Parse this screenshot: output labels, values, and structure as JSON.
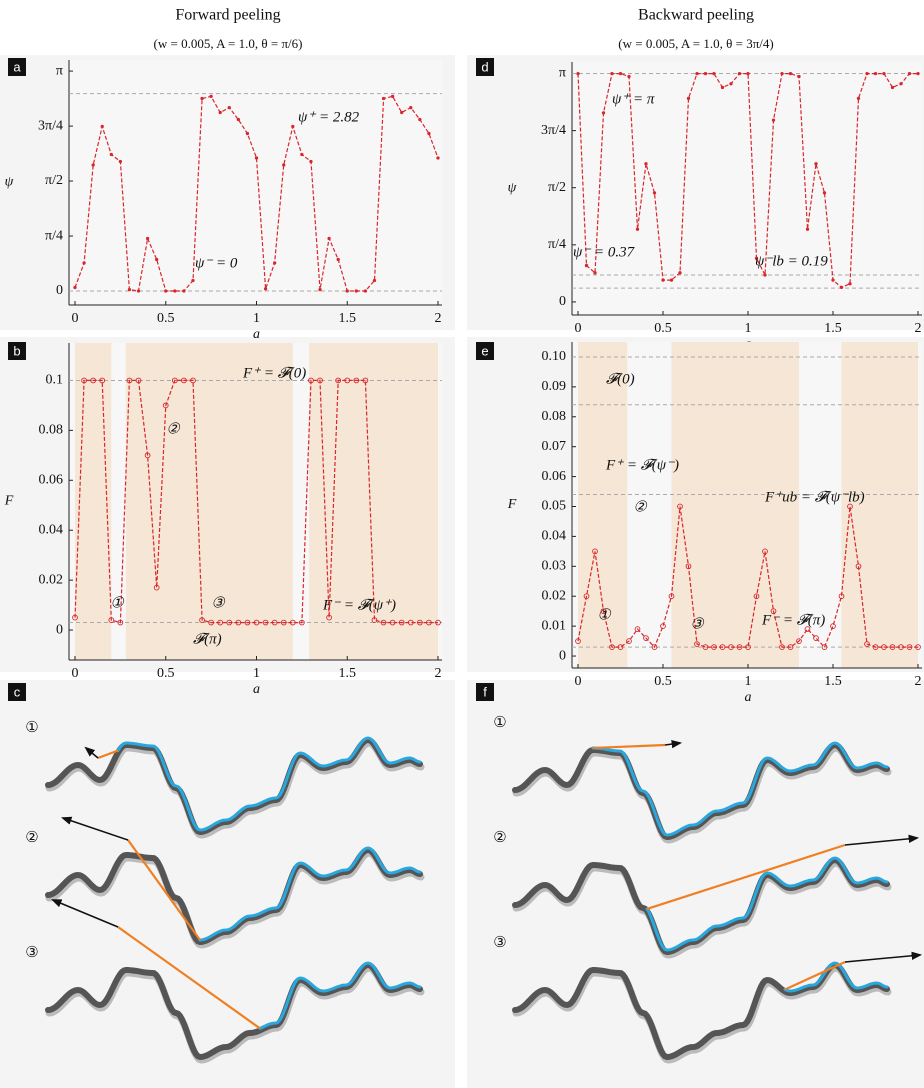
{
  "columns": [
    {
      "title": "Forward peeling",
      "subtitle": "(w = 0.005, A = 1.0, θ = π/6)"
    },
    {
      "title": "Backward peeling",
      "subtitle": "(w = 0.005, A = 1.0, θ = 3π/4)"
    }
  ],
  "chart_data": [
    {
      "type": "line",
      "panel": "a",
      "xlabel": "a",
      "ylabel": "ψ",
      "x": [
        0,
        0.05,
        0.1,
        0.15,
        0.2,
        0.25,
        0.3,
        0.35,
        0.4,
        0.45,
        0.5,
        0.55,
        0.6,
        0.65,
        0.7,
        0.75,
        0.8,
        0.85,
        0.9,
        0.95,
        1,
        1.05,
        1.1,
        1.15,
        1.2,
        1.25,
        1.3,
        1.35,
        1.4,
        1.45,
        1.5,
        1.55,
        1.6,
        1.65,
        1.7,
        1.75,
        1.8,
        1.85,
        1.9,
        1.95,
        2
      ],
      "series": [
        {
          "color": "#d9262c",
          "values": [
            0.05,
            0.4,
            1.8,
            2.35,
            1.95,
            1.85,
            0.02,
            0,
            0.75,
            0.45,
            0,
            0,
            0,
            0.15,
            2.75,
            2.78,
            2.55,
            2.62,
            2.45,
            2.25,
            1.9,
            0.03,
            0.4,
            1.8,
            2.35,
            1.95,
            1.85,
            0.02,
            0.75,
            0.45,
            0,
            0,
            0,
            0.15,
            2.75,
            2.78,
            2.55,
            2.62,
            2.45,
            2.25,
            1.9
          ]
        }
      ],
      "xlim": [
        0,
        2
      ],
      "ylim": [
        -0.2,
        3.3
      ],
      "xticks": [
        0,
        0.5,
        1,
        1.5,
        2
      ],
      "yticks": [
        0,
        {
          "value": 0.785,
          "label": "π/4"
        },
        {
          "value": 1.571,
          "label": "π/2"
        },
        {
          "value": 2.356,
          "label": "3π/4"
        },
        {
          "value": 3.1416,
          "label": "π"
        }
      ],
      "hlines": [
        2.82,
        0
      ],
      "annotations": [
        "ψ⁺ = 2.82",
        "ψ⁻ = 0"
      ]
    },
    {
      "type": "line",
      "panel": "b",
      "xlabel": "a",
      "ylabel": "F",
      "markers": true,
      "x": [
        0,
        0.05,
        0.1,
        0.15,
        0.2,
        0.25,
        0.3,
        0.35,
        0.4,
        0.45,
        0.5,
        0.55,
        0.6,
        0.65,
        0.7,
        0.75,
        0.8,
        0.85,
        0.9,
        0.95,
        1,
        1.05,
        1.1,
        1.15,
        1.2,
        1.25,
        1.3,
        1.35,
        1.4,
        1.45,
        1.5,
        1.55,
        1.6,
        1.65,
        1.7,
        1.75,
        1.8,
        1.85,
        1.9,
        1.95,
        2
      ],
      "series": [
        {
          "color": "#d9262c",
          "values": [
            0.005,
            0.1,
            0.1,
            0.1,
            0.004,
            0.003,
            0.1,
            0.1,
            0.07,
            0.017,
            0.09,
            0.1,
            0.1,
            0.1,
            0.004,
            0.003,
            0.003,
            0.003,
            0.003,
            0.003,
            0.003,
            0.003,
            0.003,
            0.003,
            0.003,
            0.003,
            0.1,
            0.1,
            0.005,
            0.1,
            0.1,
            0.1,
            0.1,
            0.004,
            0.003,
            0.003,
            0.003,
            0.003,
            0.003,
            0.003,
            0.003
          ]
        }
      ],
      "xlim": [
        0,
        2
      ],
      "ylim": [
        -0.012,
        0.115
      ],
      "xticks": [
        0,
        0.5,
        1,
        1.5,
        2
      ],
      "yticks": [
        0,
        0.02,
        0.04,
        0.06,
        0.08,
        0.1
      ],
      "shaded_regions": [
        [
          0,
          0.2
        ],
        [
          0.28,
          1.2
        ],
        [
          1.29,
          2
        ]
      ],
      "shade_color": "#f6e6d5",
      "hlines": [
        0.1,
        0.003
      ],
      "annotations": [
        "F⁺ = 𝓕(0)",
        "②",
        "①",
        "③",
        "F⁻ = 𝓕(ψ⁺)",
        "𝓕(π)"
      ]
    },
    {
      "type": "line",
      "panel": "d",
      "xlabel": "a",
      "ylabel": "ψ",
      "x": [
        0,
        0.05,
        0.1,
        0.15,
        0.2,
        0.25,
        0.3,
        0.35,
        0.4,
        0.45,
        0.5,
        0.55,
        0.6,
        0.65,
        0.7,
        0.75,
        0.8,
        0.85,
        0.9,
        0.95,
        1,
        1.05,
        1.1,
        1.15,
        1.2,
        1.25,
        1.3,
        1.35,
        1.4,
        1.45,
        1.5,
        1.55,
        1.6,
        1.65,
        1.7,
        1.75,
        1.8,
        1.85,
        1.9,
        1.95,
        2
      ],
      "series": [
        {
          "color": "#d9262c",
          "values": [
            3.14,
            0.5,
            0.4,
            2.6,
            3.14,
            3.14,
            3.1,
            1.0,
            1.9,
            1.5,
            0.3,
            0.3,
            0.4,
            2.8,
            3.14,
            3.14,
            3.14,
            2.95,
            3.0,
            3.14,
            3.14,
            0.6,
            0.37,
            2.5,
            3.14,
            3.14,
            3.1,
            1.0,
            1.9,
            1.5,
            0.3,
            0.2,
            0.25,
            2.8,
            3.14,
            3.14,
            3.14,
            2.95,
            3.0,
            3.14,
            3.14
          ]
        }
      ],
      "xlim": [
        0,
        2
      ],
      "ylim": [
        -0.18,
        3.3
      ],
      "xticks": [
        0,
        0.5,
        1,
        1.5,
        2
      ],
      "yticks": [
        0,
        {
          "value": 0.785,
          "label": "π/4"
        },
        {
          "value": 1.571,
          "label": "π/2"
        },
        {
          "value": 2.356,
          "label": "3π/4"
        },
        {
          "value": 3.1416,
          "label": "π"
        }
      ],
      "hlines": [
        3.1416,
        0.37,
        0.19
      ],
      "annotations": [
        "ψ⁺ = π",
        "ψ⁻ = 0.37",
        "ψ⁻lb = 0.19"
      ]
    },
    {
      "type": "line",
      "panel": "e",
      "xlabel": "a",
      "ylabel": "F",
      "markers": true,
      "x": [
        0,
        0.05,
        0.1,
        0.15,
        0.2,
        0.25,
        0.3,
        0.35,
        0.4,
        0.45,
        0.5,
        0.55,
        0.6,
        0.65,
        0.7,
        0.75,
        0.8,
        0.85,
        0.9,
        0.95,
        1,
        1.05,
        1.1,
        1.15,
        1.2,
        1.25,
        1.3,
        1.35,
        1.4,
        1.45,
        1.5,
        1.55,
        1.6,
        1.65,
        1.7,
        1.75,
        1.8,
        1.85,
        1.9,
        1.95,
        2
      ],
      "series": [
        {
          "color": "#d9262c",
          "values": [
            0.005,
            0.02,
            0.035,
            0.015,
            0.003,
            0.003,
            0.005,
            0.009,
            0.006,
            0.003,
            0.01,
            0.02,
            0.05,
            0.03,
            0.004,
            0.003,
            0.003,
            0.003,
            0.003,
            0.003,
            0.003,
            0.02,
            0.035,
            0.015,
            0.003,
            0.003,
            0.005,
            0.009,
            0.006,
            0.003,
            0.01,
            0.02,
            0.05,
            0.03,
            0.004,
            0.003,
            0.003,
            0.003,
            0.003,
            0.003,
            0.003
          ]
        }
      ],
      "xlim": [
        0,
        2
      ],
      "ylim": [
        -0.004,
        0.105
      ],
      "xticks": [
        0,
        0.5,
        1,
        1.5,
        2
      ],
      "yticks": [
        0,
        0.01,
        0.02,
        0.03,
        0.04,
        0.05,
        0.06,
        0.07,
        0.08,
        0.09,
        {
          "value": 0.1,
          "label": "0.10"
        }
      ],
      "shaded_regions": [
        [
          0,
          0.29
        ],
        [
          0.55,
          1.3
        ],
        [
          1.55,
          2
        ]
      ],
      "shade_color": "#f6e6d5",
      "hlines": [
        0.1,
        0.084,
        0.054,
        0.003
      ],
      "annotations": [
        "𝓕(0)",
        "F⁺ = 𝓕(ψ⁻)",
        "F⁺ub = 𝓕(ψ⁻lb)",
        "②",
        "①",
        "③",
        "F⁻ = 𝓕(π)"
      ]
    }
  ],
  "diagrams": [
    {
      "panel": "c",
      "steps": [
        "①",
        "②",
        "③"
      ]
    },
    {
      "panel": "f",
      "steps": [
        "①",
        "②",
        "③"
      ]
    }
  ]
}
